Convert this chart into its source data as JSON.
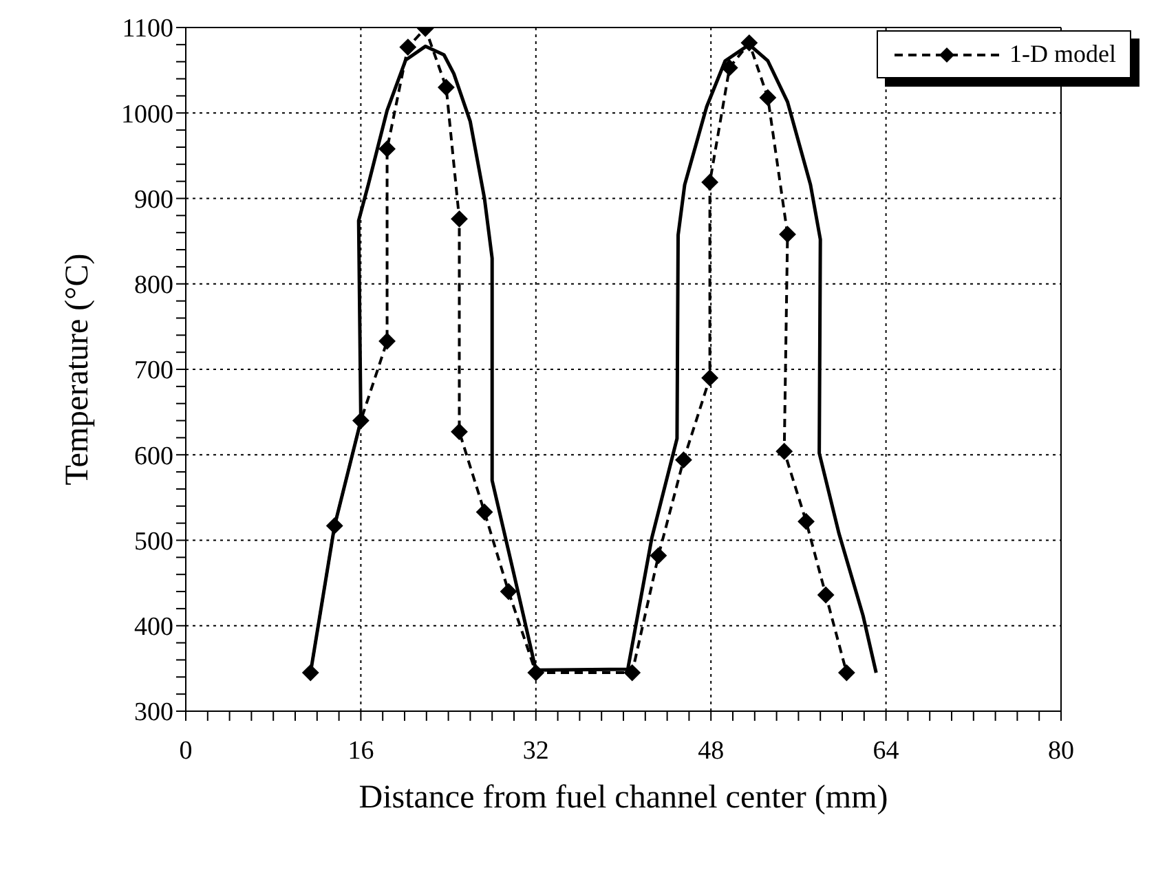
{
  "chart_data": {
    "type": "line",
    "xlabel": "Distance from fuel channel center (mm)",
    "ylabel": "Temperature (°C)",
    "xlim": [
      0,
      80
    ],
    "ylim": [
      300,
      1100
    ],
    "xticks": [
      0,
      {
        "value": 2,
        "label": null
      },
      {
        "value": 4,
        "label": null
      },
      {
        "value": 6,
        "label": null
      },
      {
        "value": 8,
        "label": null
      },
      {
        "value": 10,
        "label": null
      },
      {
        "value": 12,
        "label": null
      },
      {
        "value": 14,
        "label": null
      },
      16,
      {
        "value": 18,
        "label": null
      },
      {
        "value": 20,
        "label": null
      },
      {
        "value": 22,
        "label": null
      },
      {
        "value": 24,
        "label": null
      },
      {
        "value": 26,
        "label": null
      },
      {
        "value": 28,
        "label": null
      },
      {
        "value": 30,
        "label": null
      },
      32,
      {
        "value": 34,
        "label": null
      },
      {
        "value": 36,
        "label": null
      },
      {
        "value": 38,
        "label": null
      },
      {
        "value": 40,
        "label": null
      },
      {
        "value": 42,
        "label": null
      },
      {
        "value": 44,
        "label": null
      },
      {
        "value": 46,
        "label": null
      },
      48,
      {
        "value": 50,
        "label": null
      },
      {
        "value": 52,
        "label": null
      },
      {
        "value": 54,
        "label": null
      },
      {
        "value": 56,
        "label": null
      },
      {
        "value": 58,
        "label": null
      },
      {
        "value": 60,
        "label": null
      },
      {
        "value": 62,
        "label": null
      },
      64,
      {
        "value": 66,
        "label": null
      },
      {
        "value": 68,
        "label": null
      },
      {
        "value": 70,
        "label": null
      },
      {
        "value": 72,
        "label": null
      },
      {
        "value": 74,
        "label": null
      },
      {
        "value": 76,
        "label": null
      },
      {
        "value": 78,
        "label": null
      },
      80
    ],
    "yticks": [
      300,
      {
        "value": 320,
        "label": null
      },
      {
        "value": 340,
        "label": null
      },
      {
        "value": 360,
        "label": null
      },
      {
        "value": 380,
        "label": null
      },
      400,
      {
        "value": 420,
        "label": null
      },
      {
        "value": 440,
        "label": null
      },
      {
        "value": 460,
        "label": null
      },
      {
        "value": 480,
        "label": null
      },
      500,
      {
        "value": 520,
        "label": null
      },
      {
        "value": 540,
        "label": null
      },
      {
        "value": 560,
        "label": null
      },
      {
        "value": 580,
        "label": null
      },
      600,
      {
        "value": 620,
        "label": null
      },
      {
        "value": 640,
        "label": null
      },
      {
        "value": 660,
        "label": null
      },
      {
        "value": 680,
        "label": null
      },
      700,
      {
        "value": 720,
        "label": null
      },
      {
        "value": 740,
        "label": null
      },
      {
        "value": 760,
        "label": null
      },
      {
        "value": 780,
        "label": null
      },
      800,
      {
        "value": 820,
        "label": null
      },
      {
        "value": 840,
        "label": null
      },
      {
        "value": 860,
        "label": null
      },
      {
        "value": 880,
        "label": null
      },
      900,
      {
        "value": 920,
        "label": null
      },
      {
        "value": 940,
        "label": null
      },
      {
        "value": 960,
        "label": null
      },
      {
        "value": 980,
        "label": null
      },
      1000,
      {
        "value": 1020,
        "label": null
      },
      {
        "value": 1040,
        "label": null
      },
      {
        "value": 1060,
        "label": null
      },
      {
        "value": 1080,
        "label": null
      },
      1100
    ],
    "grid": true,
    "legend": "top right",
    "series": [
      {
        "color": "#000000",
        "line_style": "solid",
        "marker": "none",
        "x": [
          11.4,
          13.6,
          16,
          15.8,
          16.7,
          18.4,
          20.1,
          21.9,
          23.6,
          24.5,
          26,
          27.3,
          28,
          28,
          30,
          32,
          40.4,
          42.6,
          44.9,
          45,
          45.6,
          47.6,
          49.3,
          51.5,
          53.2,
          55,
          57.1,
          58,
          57.9,
          59.7,
          61.9,
          63.1
        ],
        "values": [
          345,
          517,
          640,
          874,
          917,
          1003,
          1062,
          1078,
          1068,
          1046,
          990,
          900,
          830,
          570,
          460,
          348,
          349,
          503,
          619,
          857,
          916,
          1007,
          1061,
          1080,
          1061,
          1013,
          916,
          852,
          602,
          508,
          412,
          345
        ]
      },
      {
        "name": "1-D model",
        "color": "#000000",
        "line_style": "dashed",
        "marker": "diamond",
        "x": [
          11.4,
          13.6,
          16,
          18.4,
          18.4,
          20.3,
          21.9,
          23.8,
          25,
          25,
          27.3,
          29.5,
          32,
          40.8,
          43.2,
          45.5,
          47.9,
          47.9,
          49.7,
          51.5,
          53.2,
          55,
          54.7,
          56.7,
          58.5,
          60.4
        ],
        "values": [
          345,
          517,
          640,
          733,
          958,
          1077,
          1099,
          1030,
          876,
          627,
          533,
          440,
          345,
          345,
          482,
          594,
          690,
          919,
          1053,
          1082,
          1018,
          858,
          604,
          522,
          436,
          345
        ]
      }
    ]
  }
}
